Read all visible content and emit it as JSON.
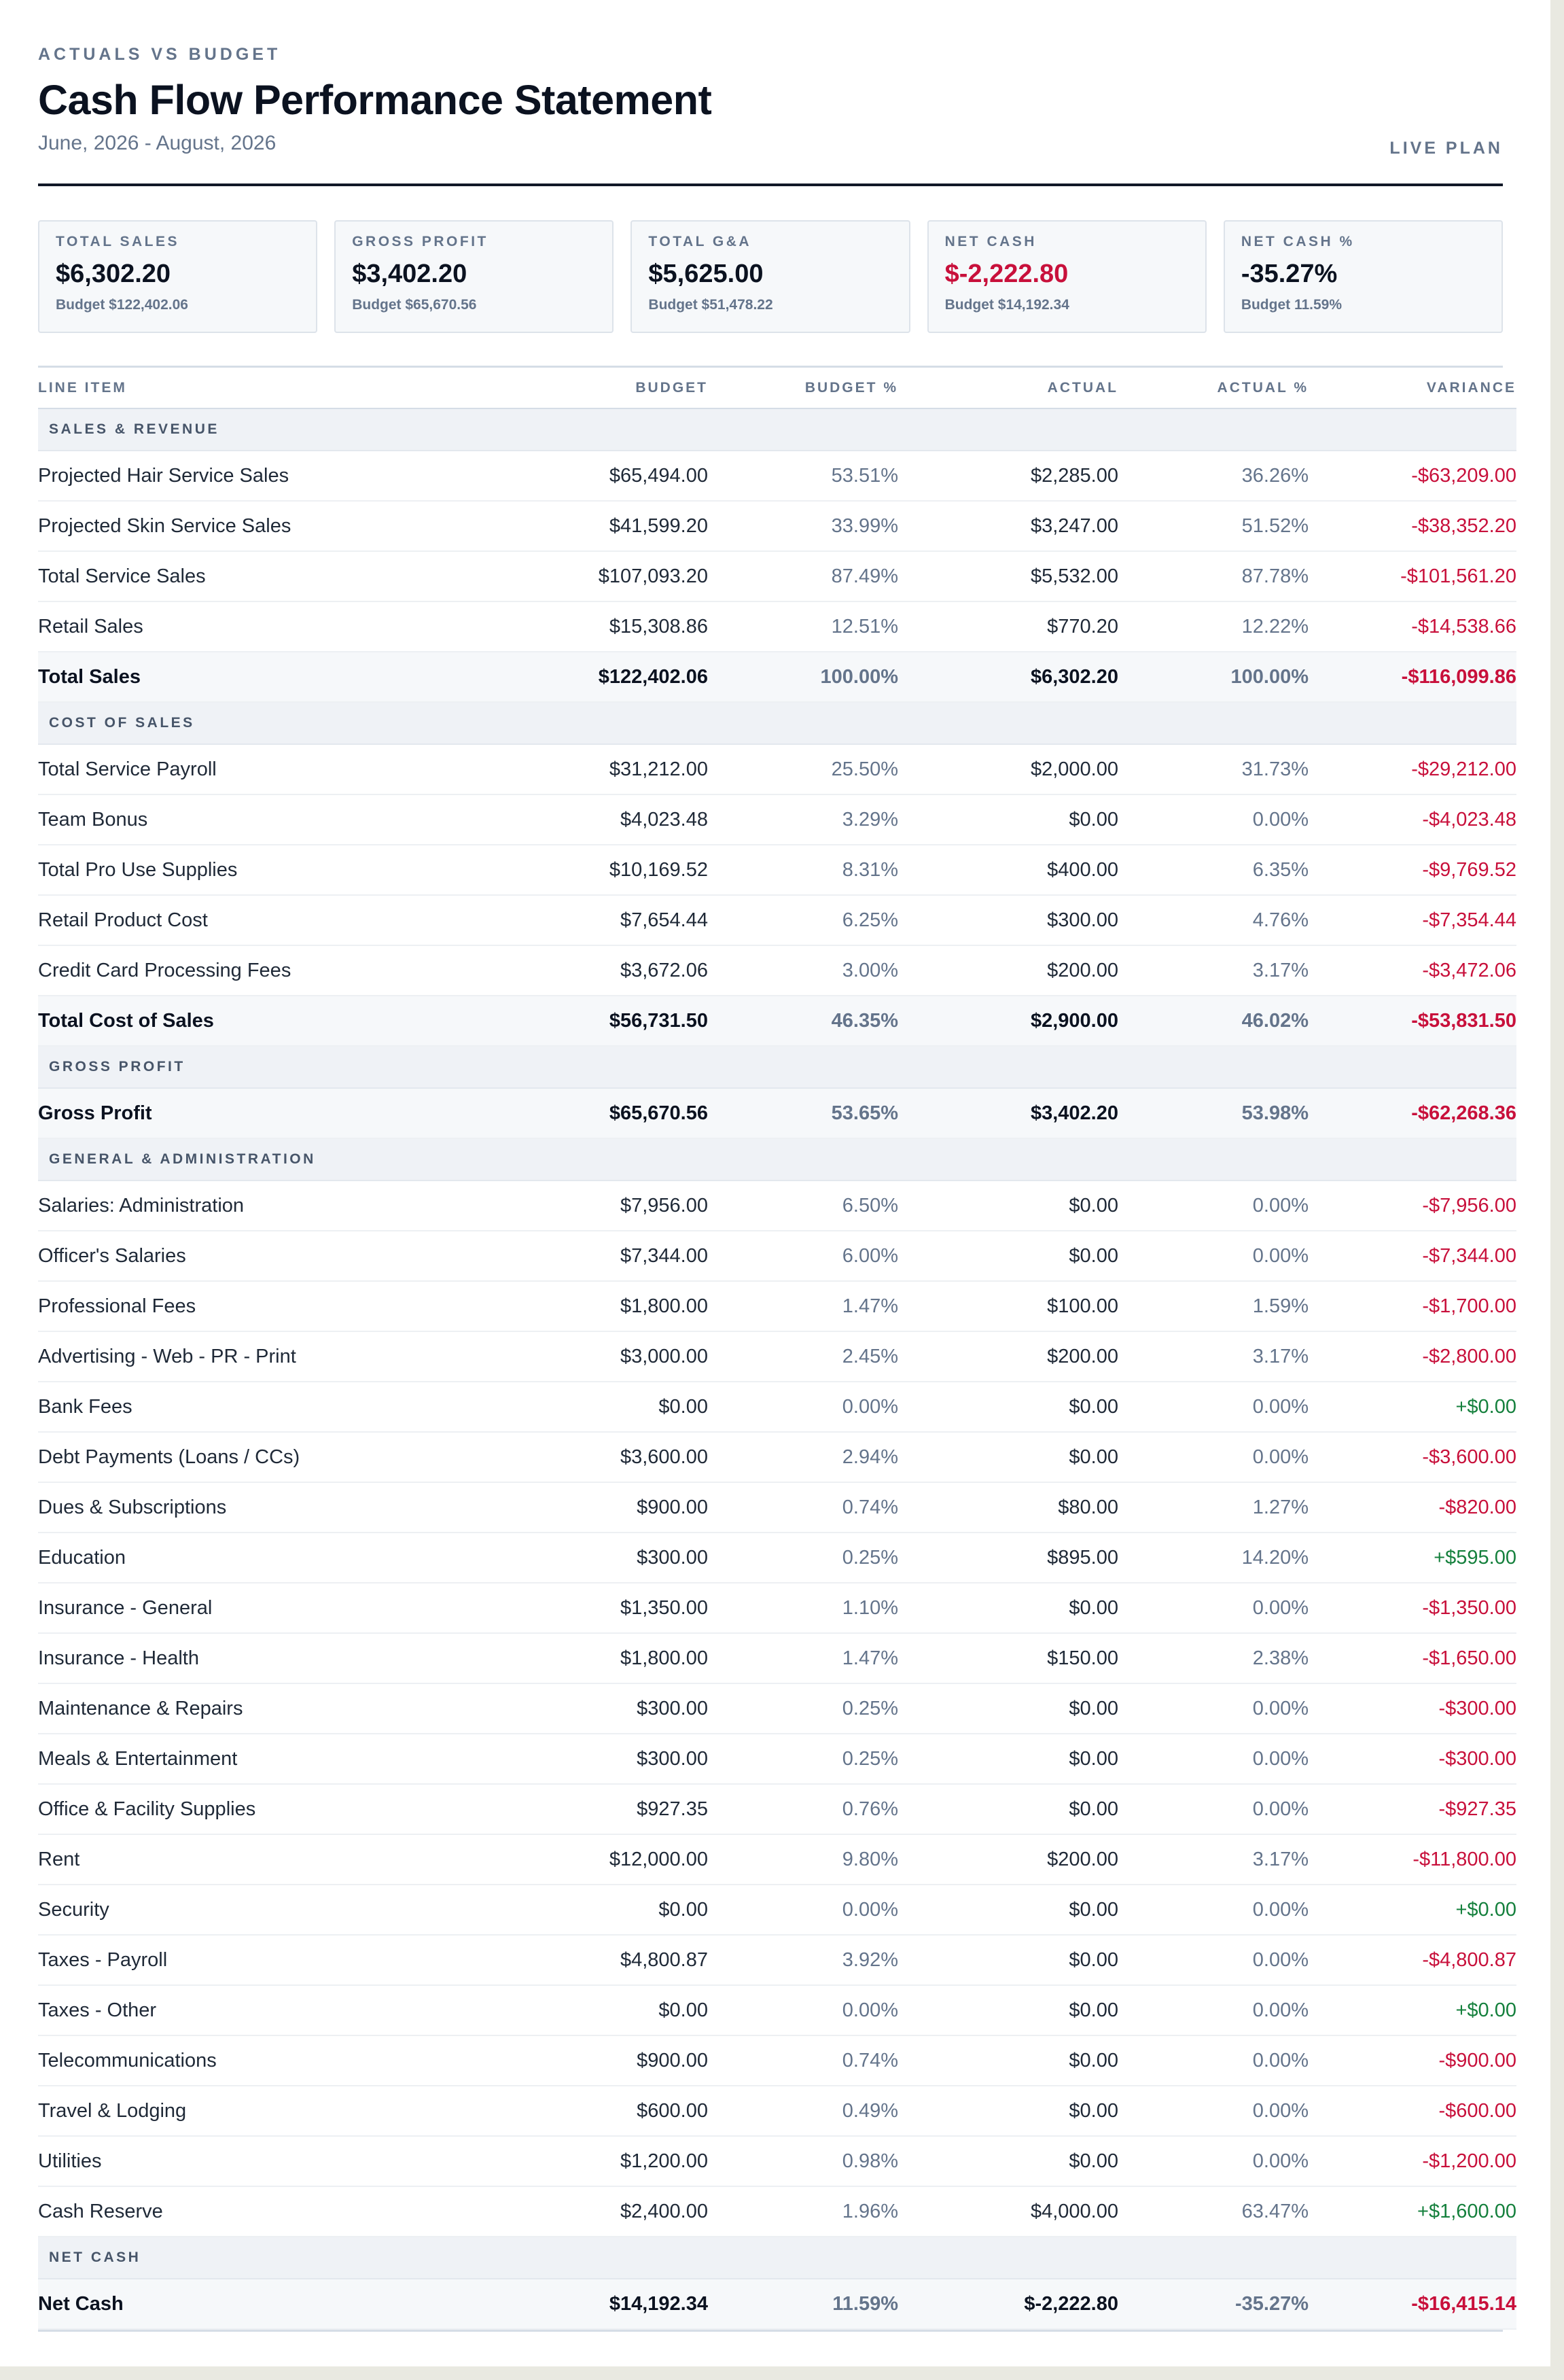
{
  "header": {
    "eyebrow": "ACTUALS VS BUDGET",
    "title": "Cash Flow Performance Statement",
    "period": "June, 2026 - August, 2026",
    "plan_label": "LIVE PLAN"
  },
  "colors": {
    "negative": "#c8103b",
    "positive": "#15803d",
    "muted": "#64748b"
  },
  "summary": [
    {
      "label": "TOTAL SALES",
      "value": "$6,302.20",
      "budget": "Budget $122,402.06",
      "negative": false
    },
    {
      "label": "GROSS PROFIT",
      "value": "$3,402.20",
      "budget": "Budget $65,670.56",
      "negative": false
    },
    {
      "label": "TOTAL G&A",
      "value": "$5,625.00",
      "budget": "Budget $51,478.22",
      "negative": false
    },
    {
      "label": "NET CASH",
      "value": "$-2,222.80",
      "budget": "Budget $14,192.34",
      "negative": true
    },
    {
      "label": "NET CASH %",
      "value": "-35.27%",
      "budget": "Budget 11.59%",
      "negative": false
    }
  ],
  "table": {
    "columns": [
      "LINE ITEM",
      "BUDGET",
      "BUDGET %",
      "ACTUAL",
      "ACTUAL %",
      "VARIANCE"
    ],
    "sections": [
      {
        "title": "SALES & REVENUE",
        "rows": [
          {
            "item": "Projected Hair Service Sales",
            "budget": "$65,494.00",
            "budget_pct": "53.51%",
            "actual": "$2,285.00",
            "actual_pct": "36.26%",
            "variance": "-$63,209.00",
            "sign": "neg"
          },
          {
            "item": "Projected Skin Service Sales",
            "budget": "$41,599.20",
            "budget_pct": "33.99%",
            "actual": "$3,247.00",
            "actual_pct": "51.52%",
            "variance": "-$38,352.20",
            "sign": "neg"
          },
          {
            "item": "Total Service Sales",
            "budget": "$107,093.20",
            "budget_pct": "87.49%",
            "actual": "$5,532.00",
            "actual_pct": "87.78%",
            "variance": "-$101,561.20",
            "sign": "neg"
          },
          {
            "item": "Retail Sales",
            "budget": "$15,308.86",
            "budget_pct": "12.51%",
            "actual": "$770.20",
            "actual_pct": "12.22%",
            "variance": "-$14,538.66",
            "sign": "neg"
          }
        ],
        "total": {
          "item": "Total Sales",
          "budget": "$122,402.06",
          "budget_pct": "100.00%",
          "actual": "$6,302.20",
          "actual_pct": "100.00%",
          "variance": "-$116,099.86",
          "sign": "neg"
        }
      },
      {
        "title": "COST OF SALES",
        "rows": [
          {
            "item": "Total Service Payroll",
            "budget": "$31,212.00",
            "budget_pct": "25.50%",
            "actual": "$2,000.00",
            "actual_pct": "31.73%",
            "variance": "-$29,212.00",
            "sign": "neg"
          },
          {
            "item": "Team Bonus",
            "budget": "$4,023.48",
            "budget_pct": "3.29%",
            "actual": "$0.00",
            "actual_pct": "0.00%",
            "variance": "-$4,023.48",
            "sign": "neg"
          },
          {
            "item": "Total Pro Use Supplies",
            "budget": "$10,169.52",
            "budget_pct": "8.31%",
            "actual": "$400.00",
            "actual_pct": "6.35%",
            "variance": "-$9,769.52",
            "sign": "neg"
          },
          {
            "item": "Retail Product Cost",
            "budget": "$7,654.44",
            "budget_pct": "6.25%",
            "actual": "$300.00",
            "actual_pct": "4.76%",
            "variance": "-$7,354.44",
            "sign": "neg"
          },
          {
            "item": "Credit Card Processing Fees",
            "budget": "$3,672.06",
            "budget_pct": "3.00%",
            "actual": "$200.00",
            "actual_pct": "3.17%",
            "variance": "-$3,472.06",
            "sign": "neg"
          }
        ],
        "total": {
          "item": "Total Cost of Sales",
          "budget": "$56,731.50",
          "budget_pct": "46.35%",
          "actual": "$2,900.00",
          "actual_pct": "46.02%",
          "variance": "-$53,831.50",
          "sign": "neg"
        }
      },
      {
        "title": "GROSS PROFIT",
        "rows": [],
        "total": {
          "item": "Gross Profit",
          "budget": "$65,670.56",
          "budget_pct": "53.65%",
          "actual": "$3,402.20",
          "actual_pct": "53.98%",
          "variance": "-$62,268.36",
          "sign": "neg"
        }
      },
      {
        "title": "GENERAL & ADMINISTRATION",
        "rows": [
          {
            "item": "Salaries: Administration",
            "budget": "$7,956.00",
            "budget_pct": "6.50%",
            "actual": "$0.00",
            "actual_pct": "0.00%",
            "variance": "-$7,956.00",
            "sign": "neg"
          },
          {
            "item": "Officer's Salaries",
            "budget": "$7,344.00",
            "budget_pct": "6.00%",
            "actual": "$0.00",
            "actual_pct": "0.00%",
            "variance": "-$7,344.00",
            "sign": "neg"
          },
          {
            "item": "Professional Fees",
            "budget": "$1,800.00",
            "budget_pct": "1.47%",
            "actual": "$100.00",
            "actual_pct": "1.59%",
            "variance": "-$1,700.00",
            "sign": "neg"
          },
          {
            "item": "Advertising - Web - PR - Print",
            "budget": "$3,000.00",
            "budget_pct": "2.45%",
            "actual": "$200.00",
            "actual_pct": "3.17%",
            "variance": "-$2,800.00",
            "sign": "neg"
          },
          {
            "item": "Bank Fees",
            "budget": "$0.00",
            "budget_pct": "0.00%",
            "actual": "$0.00",
            "actual_pct": "0.00%",
            "variance": "+$0.00",
            "sign": "pos"
          },
          {
            "item": "Debt Payments (Loans / CCs)",
            "budget": "$3,600.00",
            "budget_pct": "2.94%",
            "actual": "$0.00",
            "actual_pct": "0.00%",
            "variance": "-$3,600.00",
            "sign": "neg"
          },
          {
            "item": "Dues & Subscriptions",
            "budget": "$900.00",
            "budget_pct": "0.74%",
            "actual": "$80.00",
            "actual_pct": "1.27%",
            "variance": "-$820.00",
            "sign": "neg"
          },
          {
            "item": "Education",
            "budget": "$300.00",
            "budget_pct": "0.25%",
            "actual": "$895.00",
            "actual_pct": "14.20%",
            "variance": "+$595.00",
            "sign": "pos"
          },
          {
            "item": "Insurance - General",
            "budget": "$1,350.00",
            "budget_pct": "1.10%",
            "actual": "$0.00",
            "actual_pct": "0.00%",
            "variance": "-$1,350.00",
            "sign": "neg"
          },
          {
            "item": "Insurance - Health",
            "budget": "$1,800.00",
            "budget_pct": "1.47%",
            "actual": "$150.00",
            "actual_pct": "2.38%",
            "variance": "-$1,650.00",
            "sign": "neg"
          },
          {
            "item": "Maintenance & Repairs",
            "budget": "$300.00",
            "budget_pct": "0.25%",
            "actual": "$0.00",
            "actual_pct": "0.00%",
            "variance": "-$300.00",
            "sign": "neg"
          },
          {
            "item": "Meals & Entertainment",
            "budget": "$300.00",
            "budget_pct": "0.25%",
            "actual": "$0.00",
            "actual_pct": "0.00%",
            "variance": "-$300.00",
            "sign": "neg"
          },
          {
            "item": "Office & Facility Supplies",
            "budget": "$927.35",
            "budget_pct": "0.76%",
            "actual": "$0.00",
            "actual_pct": "0.00%",
            "variance": "-$927.35",
            "sign": "neg"
          },
          {
            "item": "Rent",
            "budget": "$12,000.00",
            "budget_pct": "9.80%",
            "actual": "$200.00",
            "actual_pct": "3.17%",
            "variance": "-$11,800.00",
            "sign": "neg"
          },
          {
            "item": "Security",
            "budget": "$0.00",
            "budget_pct": "0.00%",
            "actual": "$0.00",
            "actual_pct": "0.00%",
            "variance": "+$0.00",
            "sign": "pos"
          },
          {
            "item": "Taxes - Payroll",
            "budget": "$4,800.87",
            "budget_pct": "3.92%",
            "actual": "$0.00",
            "actual_pct": "0.00%",
            "variance": "-$4,800.87",
            "sign": "neg"
          },
          {
            "item": "Taxes - Other",
            "budget": "$0.00",
            "budget_pct": "0.00%",
            "actual": "$0.00",
            "actual_pct": "0.00%",
            "variance": "+$0.00",
            "sign": "pos"
          },
          {
            "item": "Telecommunications",
            "budget": "$900.00",
            "budget_pct": "0.74%",
            "actual": "$0.00",
            "actual_pct": "0.00%",
            "variance": "-$900.00",
            "sign": "neg"
          },
          {
            "item": "Travel & Lodging",
            "budget": "$600.00",
            "budget_pct": "0.49%",
            "actual": "$0.00",
            "actual_pct": "0.00%",
            "variance": "-$600.00",
            "sign": "neg"
          },
          {
            "item": "Utilities",
            "budget": "$1,200.00",
            "budget_pct": "0.98%",
            "actual": "$0.00",
            "actual_pct": "0.00%",
            "variance": "-$1,200.00",
            "sign": "neg"
          },
          {
            "item": "Cash Reserve",
            "budget": "$2,400.00",
            "budget_pct": "1.96%",
            "actual": "$4,000.00",
            "actual_pct": "63.47%",
            "variance": "+$1,600.00",
            "sign": "pos"
          }
        ],
        "total": null
      },
      {
        "title": "NET CASH",
        "rows": [],
        "total": {
          "item": "Net Cash",
          "budget": "$14,192.34",
          "budget_pct": "11.59%",
          "actual": "$-2,222.80",
          "actual_pct": "-35.27%",
          "variance": "-$16,415.14",
          "sign": "neg"
        }
      }
    ]
  }
}
